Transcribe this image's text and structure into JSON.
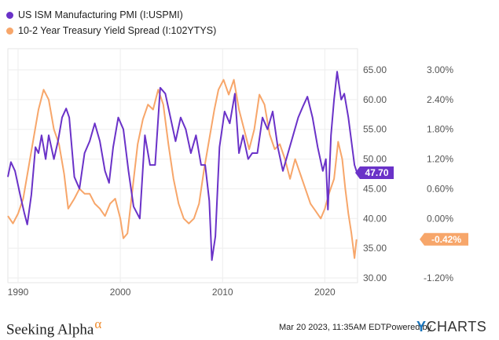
{
  "legend": [
    {
      "label": "US ISM Manufacturing PMI (I:USPMI)",
      "color": "#6a32c8"
    },
    {
      "label": "10-2 Year Treasury Yield Spread (I:102YTYS)",
      "color": "#f7a66a"
    }
  ],
  "chart_data": {
    "type": "line",
    "x_ticks": [
      "1990",
      "2000",
      "2010",
      "2020"
    ],
    "x_range": [
      1989.0,
      2023.2
    ],
    "left_axis": {
      "series": "US ISM Manufacturing PMI (I:USPMI)",
      "ticks": [
        "65.00",
        "60.00",
        "55.00",
        "50.00",
        "45.00",
        "40.00",
        "35.00",
        "30.00"
      ],
      "range": [
        30,
        65
      ]
    },
    "right_axis": {
      "series": "10-2 Year Treasury Yield Spread (I:102YTYS)",
      "ticks": [
        "3.00%",
        "2.40%",
        "1.80%",
        "1.20%",
        "0.60%",
        "0.00%",
        "-1.20%"
      ],
      "range": [
        -1.2,
        3.0
      ]
    },
    "series": [
      {
        "name": "US ISM Manufacturing PMI (I:USPMI)",
        "color": "#6a32c8",
        "axis": "left",
        "last_label": "47.70",
        "points": [
          [
            1989.0,
            47
          ],
          [
            1989.3,
            49.5
          ],
          [
            1989.7,
            48
          ],
          [
            1990.2,
            44
          ],
          [
            1990.6,
            41
          ],
          [
            1990.9,
            39
          ],
          [
            1991.3,
            44
          ],
          [
            1991.7,
            52
          ],
          [
            1992.0,
            51
          ],
          [
            1992.3,
            54
          ],
          [
            1992.7,
            50
          ],
          [
            1993.0,
            54
          ],
          [
            1993.5,
            50
          ],
          [
            1993.9,
            53
          ],
          [
            1994.3,
            57
          ],
          [
            1994.7,
            58.5
          ],
          [
            1995.0,
            57
          ],
          [
            1995.5,
            47
          ],
          [
            1996.0,
            45
          ],
          [
            1996.5,
            51
          ],
          [
            1997.0,
            53
          ],
          [
            1997.5,
            56
          ],
          [
            1998.0,
            53
          ],
          [
            1998.5,
            48
          ],
          [
            1998.9,
            46
          ],
          [
            1999.3,
            52
          ],
          [
            1999.8,
            57
          ],
          [
            2000.3,
            55
          ],
          [
            2000.8,
            48
          ],
          [
            2001.3,
            42
          ],
          [
            2001.9,
            40
          ],
          [
            2002.4,
            54
          ],
          [
            2002.9,
            49
          ],
          [
            2003.4,
            49
          ],
          [
            2003.9,
            62
          ],
          [
            2004.4,
            61
          ],
          [
            2004.9,
            57
          ],
          [
            2005.4,
            53
          ],
          [
            2005.9,
            57
          ],
          [
            2006.4,
            55
          ],
          [
            2006.9,
            51
          ],
          [
            2007.4,
            54
          ],
          [
            2007.9,
            49
          ],
          [
            2008.3,
            49
          ],
          [
            2008.7,
            43
          ],
          [
            2008.95,
            33
          ],
          [
            2009.3,
            37
          ],
          [
            2009.7,
            52
          ],
          [
            2010.2,
            58
          ],
          [
            2010.7,
            56
          ],
          [
            2011.2,
            61
          ],
          [
            2011.6,
            51
          ],
          [
            2012.0,
            54
          ],
          [
            2012.5,
            50
          ],
          [
            2012.9,
            51
          ],
          [
            2013.4,
            51
          ],
          [
            2013.9,
            57
          ],
          [
            2014.4,
            55
          ],
          [
            2014.9,
            58
          ],
          [
            2015.4,
            52
          ],
          [
            2015.9,
            48
          ],
          [
            2016.4,
            51
          ],
          [
            2016.9,
            54
          ],
          [
            2017.4,
            57
          ],
          [
            2017.9,
            59
          ],
          [
            2018.3,
            60.5
          ],
          [
            2018.8,
            57
          ],
          [
            2019.3,
            52
          ],
          [
            2019.8,
            48
          ],
          [
            2020.1,
            50
          ],
          [
            2020.3,
            41.5
          ],
          [
            2020.6,
            54
          ],
          [
            2020.9,
            60
          ],
          [
            2021.2,
            64.7
          ],
          [
            2021.6,
            60
          ],
          [
            2021.9,
            61
          ],
          [
            2022.3,
            57
          ],
          [
            2022.6,
            53
          ],
          [
            2022.9,
            49
          ],
          [
            2023.15,
            47.7
          ]
        ]
      },
      {
        "name": "10-2 Year Treasury Yield Spread (I:102YTYS)",
        "color": "#f7a66a",
        "axis": "right",
        "last_label": "-0.42%",
        "points": [
          [
            1989.0,
            0.05
          ],
          [
            1989.5,
            -0.1
          ],
          [
            1990.0,
            0.1
          ],
          [
            1990.5,
            0.4
          ],
          [
            1991.0,
            1.0
          ],
          [
            1991.5,
            1.6
          ],
          [
            1992.0,
            2.2
          ],
          [
            1992.5,
            2.6
          ],
          [
            1993.0,
            2.4
          ],
          [
            1993.5,
            1.8
          ],
          [
            1994.0,
            1.5
          ],
          [
            1994.5,
            0.9
          ],
          [
            1994.9,
            0.2
          ],
          [
            1995.5,
            0.4
          ],
          [
            1996.0,
            0.6
          ],
          [
            1996.5,
            0.5
          ],
          [
            1997.0,
            0.5
          ],
          [
            1997.5,
            0.3
          ],
          [
            1998.0,
            0.2
          ],
          [
            1998.5,
            0.05
          ],
          [
            1999.0,
            0.3
          ],
          [
            1999.5,
            0.4
          ],
          [
            2000.0,
            0.0
          ],
          [
            2000.3,
            -0.4
          ],
          [
            2000.7,
            -0.3
          ],
          [
            2001.2,
            0.6
          ],
          [
            2001.7,
            1.5
          ],
          [
            2002.2,
            2.0
          ],
          [
            2002.7,
            2.3
          ],
          [
            2003.2,
            2.2
          ],
          [
            2003.7,
            2.6
          ],
          [
            2004.2,
            2.3
          ],
          [
            2004.7,
            1.5
          ],
          [
            2005.2,
            0.8
          ],
          [
            2005.7,
            0.3
          ],
          [
            2006.2,
            0.0
          ],
          [
            2006.7,
            -0.1
          ],
          [
            2007.2,
            0.0
          ],
          [
            2007.7,
            0.3
          ],
          [
            2008.2,
            1.0
          ],
          [
            2008.7,
            1.6
          ],
          [
            2009.2,
            2.2
          ],
          [
            2009.6,
            2.6
          ],
          [
            2010.1,
            2.8
          ],
          [
            2010.6,
            2.5
          ],
          [
            2011.1,
            2.8
          ],
          [
            2011.6,
            2.2
          ],
          [
            2012.1,
            1.8
          ],
          [
            2012.6,
            1.4
          ],
          [
            2013.1,
            1.8
          ],
          [
            2013.6,
            2.5
          ],
          [
            2014.1,
            2.3
          ],
          [
            2014.6,
            1.7
          ],
          [
            2015.1,
            1.4
          ],
          [
            2015.6,
            1.5
          ],
          [
            2016.1,
            1.2
          ],
          [
            2016.6,
            0.8
          ],
          [
            2017.1,
            1.2
          ],
          [
            2017.6,
            0.9
          ],
          [
            2018.1,
            0.6
          ],
          [
            2018.6,
            0.3
          ],
          [
            2019.1,
            0.15
          ],
          [
            2019.6,
            0.0
          ],
          [
            2020.0,
            0.2
          ],
          [
            2020.4,
            0.5
          ],
          [
            2020.9,
            0.8
          ],
          [
            2021.3,
            1.55
          ],
          [
            2021.7,
            1.2
          ],
          [
            2022.0,
            0.6
          ],
          [
            2022.3,
            0.1
          ],
          [
            2022.6,
            -0.3
          ],
          [
            2022.9,
            -0.8
          ],
          [
            2023.1,
            -0.42
          ]
        ]
      }
    ]
  },
  "footer": {
    "brand": "Seeking Alpha",
    "brand_mark": "α",
    "timestamp": "Mar 20 2023, 11:35AM EDT.",
    "powered_by": "Powered by",
    "ycharts_y": "Y",
    "ycharts_rest": "CHARTS"
  }
}
